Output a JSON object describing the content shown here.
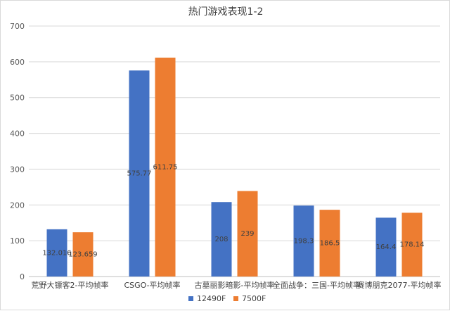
{
  "chart_data": {
    "type": "bar",
    "title": "热门游戏表现1-2",
    "categories": [
      "荒野大镖客2-平均帧率",
      "CSGO-平均帧率",
      "古墓丽影暗影-平均帧率",
      "全面战争：三国-平均帧率",
      "赛博朋克2077-平均帧率"
    ],
    "series": [
      {
        "name": "12490F",
        "color": "#4472c4",
        "values": [
          132.016,
          575.77,
          208,
          198.3,
          164.4
        ],
        "labels": [
          "132.016",
          "575.77",
          "208",
          "198.3",
          "164.4"
        ]
      },
      {
        "name": "7500F",
        "color": "#ed7d31",
        "values": [
          123.659,
          611.75,
          239,
          186.5,
          178.14
        ],
        "labels": [
          "123.659",
          "611.75",
          "239",
          "186.5",
          "178.14"
        ]
      }
    ],
    "ylim": [
      0,
      700
    ],
    "yticks": [
      "0",
      "100",
      "200",
      "300",
      "400",
      "500",
      "600",
      "700"
    ],
    "xlabel": "",
    "ylabel": "",
    "grid": true,
    "legend_position": "bottom"
  }
}
